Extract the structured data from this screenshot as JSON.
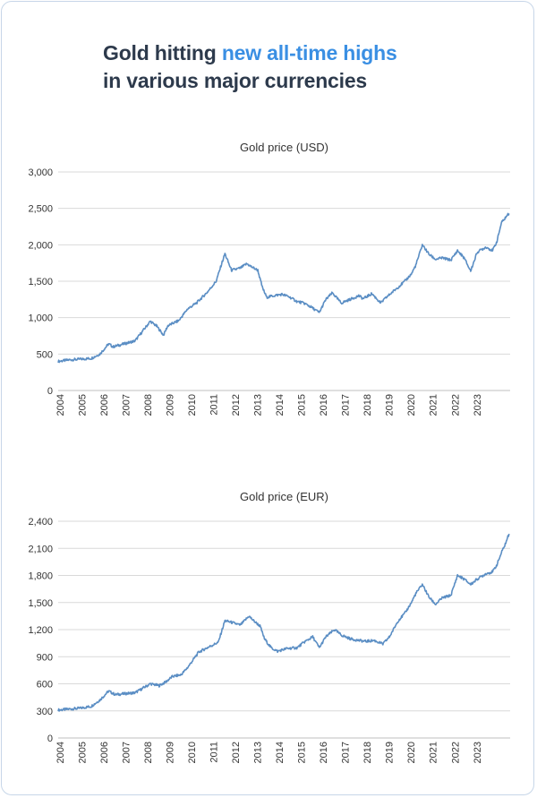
{
  "headline": {
    "part1": "Gold hitting ",
    "accent": "new all-time highs",
    "line2": "in various major currencies",
    "accent_color": "#3a8fe3",
    "text_color": "#2d3a4c"
  },
  "chart_data": [
    {
      "type": "line",
      "title": "Gold price (USD)",
      "xlabel": "",
      "ylabel": "",
      "ylim": [
        0,
        3000
      ],
      "yticks": [
        "0",
        "500",
        "1,000",
        "1,500",
        "2,000",
        "2,500",
        "3,000"
      ],
      "ytick_values": [
        0,
        500,
        1000,
        1500,
        2000,
        2500,
        3000
      ],
      "xlim": [
        2004,
        2024.6
      ],
      "xticks": [
        "2004",
        "2005",
        "2006",
        "2007",
        "2008",
        "2009",
        "2010",
        "2011",
        "2012",
        "2013",
        "2014",
        "2015",
        "2016",
        "2017",
        "2018",
        "2019",
        "2020",
        "2021",
        "2022",
        "2023"
      ],
      "grid": true,
      "line_color": "#5b8ec4",
      "series": [
        {
          "x": [
            2004.0,
            2004.5,
            2005.0,
            2005.5,
            2005.9,
            2006.3,
            2006.5,
            2007.0,
            2007.5,
            2008.2,
            2008.5,
            2008.8,
            2009.0,
            2009.5,
            2009.9,
            2010.3,
            2010.8,
            2011.2,
            2011.6,
            2011.7,
            2011.9,
            2012.3,
            2012.6,
            2012.8,
            2013.1,
            2013.3,
            2013.5,
            2013.8,
            2014.2,
            2014.5,
            2014.9,
            2015.2,
            2015.5,
            2015.9,
            2016.2,
            2016.5,
            2016.9,
            2017.3,
            2017.7,
            2017.9,
            2018.3,
            2018.7,
            2019.0,
            2019.5,
            2019.8,
            2020.1,
            2020.3,
            2020.6,
            2020.9,
            2021.2,
            2021.5,
            2021.9,
            2022.2,
            2022.5,
            2022.8,
            2023.1,
            2023.5,
            2023.8,
            2024.0,
            2024.2,
            2024.4,
            2024.55
          ],
          "y": [
            400,
            420,
            430,
            440,
            500,
            640,
            600,
            640,
            680,
            950,
            880,
            760,
            890,
            960,
            1120,
            1200,
            1350,
            1500,
            1880,
            1800,
            1650,
            1680,
            1740,
            1700,
            1650,
            1420,
            1280,
            1300,
            1320,
            1290,
            1220,
            1200,
            1150,
            1070,
            1250,
            1340,
            1200,
            1250,
            1300,
            1260,
            1330,
            1200,
            1290,
            1420,
            1500,
            1600,
            1720,
            2000,
            1870,
            1800,
            1820,
            1790,
            1920,
            1820,
            1640,
            1900,
            1970,
            1920,
            2050,
            2300,
            2380,
            2430
          ]
        }
      ]
    },
    {
      "type": "line",
      "title": "Gold price (EUR)",
      "xlabel": "",
      "ylabel": "",
      "ylim": [
        0,
        2400
      ],
      "yticks": [
        "0",
        "300",
        "600",
        "900",
        "1,200",
        "1,500",
        "1,800",
        "2,100",
        "2,400"
      ],
      "ytick_values": [
        0,
        300,
        600,
        900,
        1200,
        1500,
        1800,
        2100,
        2400
      ],
      "xlim": [
        2004,
        2024.6
      ],
      "xticks": [
        "2004",
        "2005",
        "2006",
        "2007",
        "2008",
        "2009",
        "2010",
        "2011",
        "2012",
        "2013",
        "2014",
        "2015",
        "2016",
        "2017",
        "2018",
        "2019",
        "2020",
        "2021",
        "2022",
        "2023"
      ],
      "grid": true,
      "line_color": "#5b8ec4",
      "series": [
        {
          "x": [
            2004.0,
            2004.5,
            2005.0,
            2005.5,
            2005.9,
            2006.3,
            2006.6,
            2007.0,
            2007.5,
            2008.2,
            2008.6,
            2008.9,
            2009.2,
            2009.6,
            2009.9,
            2010.4,
            2010.8,
            2011.3,
            2011.6,
            2011.9,
            2012.3,
            2012.7,
            2012.9,
            2013.2,
            2013.4,
            2013.7,
            2014.0,
            2014.4,
            2014.9,
            2015.2,
            2015.6,
            2015.9,
            2016.2,
            2016.6,
            2016.9,
            2017.3,
            2017.7,
            2018.0,
            2018.4,
            2018.8,
            2019.1,
            2019.5,
            2019.8,
            2020.1,
            2020.3,
            2020.6,
            2020.9,
            2021.2,
            2021.5,
            2021.9,
            2022.2,
            2022.5,
            2022.8,
            2023.1,
            2023.5,
            2023.8,
            2024.0,
            2024.2,
            2024.4,
            2024.55
          ],
          "y": [
            310,
            320,
            330,
            350,
            420,
            520,
            480,
            490,
            500,
            600,
            580,
            620,
            680,
            700,
            780,
            950,
            1000,
            1060,
            1300,
            1280,
            1250,
            1350,
            1300,
            1240,
            1100,
            1000,
            960,
            990,
            1000,
            1060,
            1120,
            1000,
            1120,
            1200,
            1140,
            1100,
            1080,
            1070,
            1080,
            1040,
            1120,
            1300,
            1380,
            1500,
            1600,
            1700,
            1560,
            1480,
            1550,
            1580,
            1800,
            1760,
            1700,
            1760,
            1820,
            1840,
            1920,
            2050,
            2160,
            2260
          ]
        }
      ]
    }
  ]
}
